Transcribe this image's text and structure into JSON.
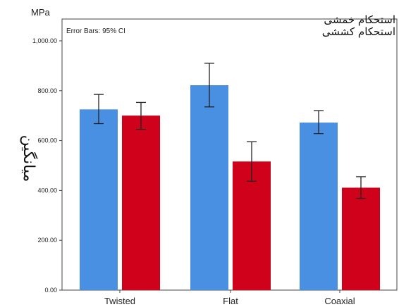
{
  "chart_data": {
    "type": "bar",
    "unit_label": "MPa",
    "ylabel": "میانگین",
    "error_note": "Error Bars: 95% CI",
    "categories": [
      "Twisted",
      "Flat",
      "Coaxial"
    ],
    "ylim": [
      0,
      1000
    ],
    "yticks": [
      0,
      200,
      400,
      600,
      800,
      1000
    ],
    "ytick_labels": [
      "0.00",
      "200.00",
      "400.00",
      "600.00",
      "800.00",
      "1,000.00"
    ],
    "grid": false,
    "legend_position": "top-right",
    "series": [
      {
        "name": "استحکام خمشی",
        "color": "#4a90e2",
        "values": [
          725,
          822,
          672
        ],
        "ci_low": [
          668,
          735,
          628
        ],
        "ci_high": [
          785,
          910,
          720
        ]
      },
      {
        "name": "استحکام کششی",
        "color": "#d0021b",
        "values": [
          700,
          516,
          411
        ],
        "ci_low": [
          645,
          437,
          368
        ],
        "ci_high": [
          753,
          595,
          455
        ]
      }
    ]
  }
}
